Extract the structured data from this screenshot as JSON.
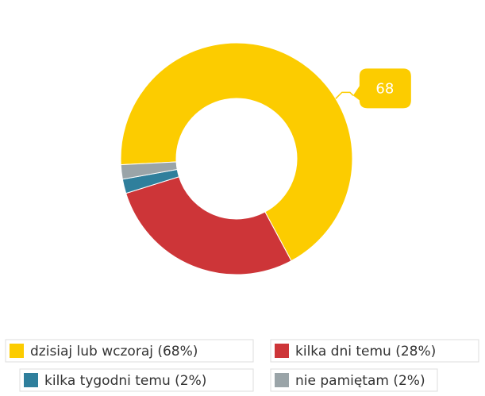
{
  "chart_data": {
    "type": "pie",
    "categories": [
      "dzisiaj lub wczoraj (68%)",
      "kilka dni temu (28%)",
      "kilka tygodni temu (2%)",
      "nie pamiętam (2%)"
    ],
    "values": [
      68,
      28,
      2,
      2
    ],
    "colors": [
      "#fccc00",
      "#cd3538",
      "#2f7f9c",
      "#9aa4a8"
    ],
    "data_labels": [
      0
    ]
  }
}
